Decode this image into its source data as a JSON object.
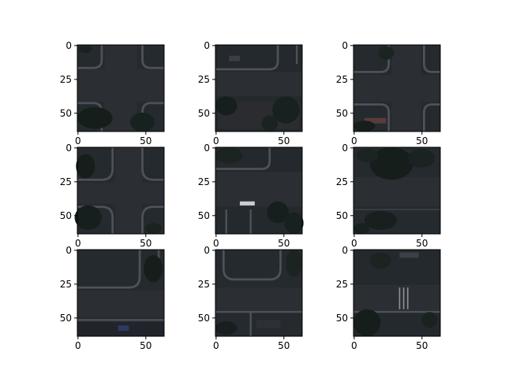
{
  "figure": {
    "background": "#ffffff",
    "axis_color": "#000000",
    "rows": 3,
    "cols": 3,
    "x_tick_labels": [
      "0",
      "50"
    ],
    "y_tick_labels": [
      "0",
      "25",
      "50"
    ]
  },
  "panels": [
    {
      "scene": "four-way road intersection with curved corner curbs and dark tree clusters at lower left and lower right"
    },
    {
      "scene": "horizontal road with parking lot and trees below; corner curb at upper left and upper right"
    },
    {
      "scene": "intersection with curved curbs; trees at lower left and a small structure near the bottom"
    },
    {
      "scene": "four-way intersection; trees in upper-left and lower-left corners, corner curbs at upper right and lower right"
    },
    {
      "scene": "road with a small white vehicle near the center and trees along the bottom"
    },
    {
      "scene": "road corridor with dense tree canopy in the upper area"
    },
    {
      "scene": "corner of a road with a curved curb at upper right and a road along the bottom edge"
    },
    {
      "scene": "curved curb at upper left, parking area and a road along the lower section"
    },
    {
      "scene": "road with pedestrian crosswalk stripes and trees on the lower left"
    }
  ],
  "colors": {
    "ground": "#23272c",
    "road": "#2a2d31",
    "curb": "#4e535a",
    "tree": "#16201e",
    "vehicle": "#c8cdd3"
  }
}
